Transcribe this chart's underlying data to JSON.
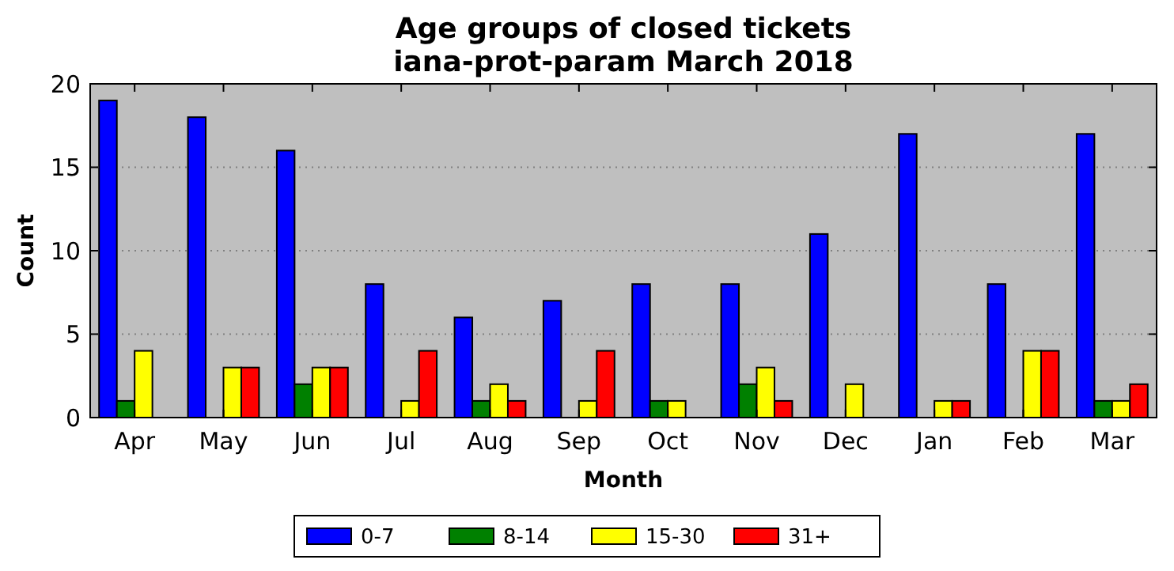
{
  "chart_data": {
    "type": "bar",
    "title": "Age groups of closed tickets\niana-prot-param March 2018",
    "xlabel": "Month",
    "ylabel": "Count",
    "categories": [
      "Apr",
      "May",
      "Jun",
      "Jul",
      "Aug",
      "Sep",
      "Oct",
      "Nov",
      "Dec",
      "Jan",
      "Feb",
      "Mar"
    ],
    "series": [
      {
        "name": "0-7",
        "color": "#0000ff",
        "values": [
          19,
          18,
          16,
          8,
          6,
          7,
          8,
          8,
          11,
          17,
          8,
          17
        ]
      },
      {
        "name": "8-14",
        "color": "#008000",
        "values": [
          1,
          0,
          2,
          0,
          1,
          0,
          1,
          2,
          0,
          0,
          0,
          1
        ]
      },
      {
        "name": "15-30",
        "color": "#ffff00",
        "values": [
          4,
          3,
          3,
          1,
          2,
          1,
          1,
          3,
          2,
          1,
          4,
          1
        ]
      },
      {
        "name": "31+",
        "color": "#ff0000",
        "values": [
          0,
          3,
          3,
          4,
          1,
          4,
          0,
          1,
          0,
          1,
          4,
          2
        ]
      }
    ],
    "ylim": [
      0,
      20
    ],
    "yticks": [
      0,
      5,
      10,
      15,
      20
    ],
    "grid": "y",
    "legend": "bottom"
  }
}
